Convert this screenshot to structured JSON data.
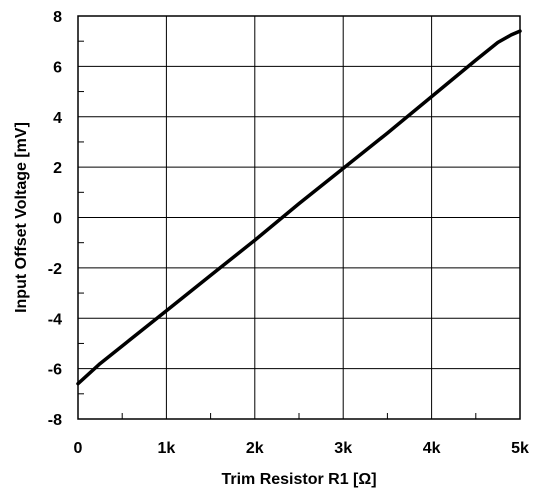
{
  "chart_data": {
    "type": "line",
    "title": "",
    "xlabel": "Trim Resistor R1 [Ω]",
    "ylabel": "Input Offset Voltage [mV]",
    "xlim": [
      0,
      5000
    ],
    "ylim": [
      -8,
      8
    ],
    "x_ticks": [
      {
        "value": 0,
        "label": "0"
      },
      {
        "value": 1000,
        "label": "1k"
      },
      {
        "value": 2000,
        "label": "2k"
      },
      {
        "value": 3000,
        "label": "3k"
      },
      {
        "value": 4000,
        "label": "4k"
      },
      {
        "value": 5000,
        "label": "5k"
      }
    ],
    "y_ticks": [
      {
        "value": -8,
        "label": "-8"
      },
      {
        "value": -6,
        "label": "-6"
      },
      {
        "value": -4,
        "label": "-4"
      },
      {
        "value": -2,
        "label": "-2"
      },
      {
        "value": 0,
        "label": "0"
      },
      {
        "value": 2,
        "label": "2"
      },
      {
        "value": 4,
        "label": "4"
      },
      {
        "value": 6,
        "label": "6"
      },
      {
        "value": 8,
        "label": "8"
      }
    ],
    "grid": true,
    "series": [
      {
        "color": "#000000",
        "x": [
          0,
          250,
          500,
          1000,
          1500,
          2000,
          2500,
          3000,
          3500,
          4000,
          4500,
          4750,
          4900,
          5000
        ],
        "y": [
          -6.6,
          -5.8,
          -5.1,
          -3.7,
          -2.3,
          -0.9,
          0.55,
          1.95,
          3.35,
          4.8,
          6.25,
          6.95,
          7.25,
          7.4
        ]
      }
    ]
  }
}
